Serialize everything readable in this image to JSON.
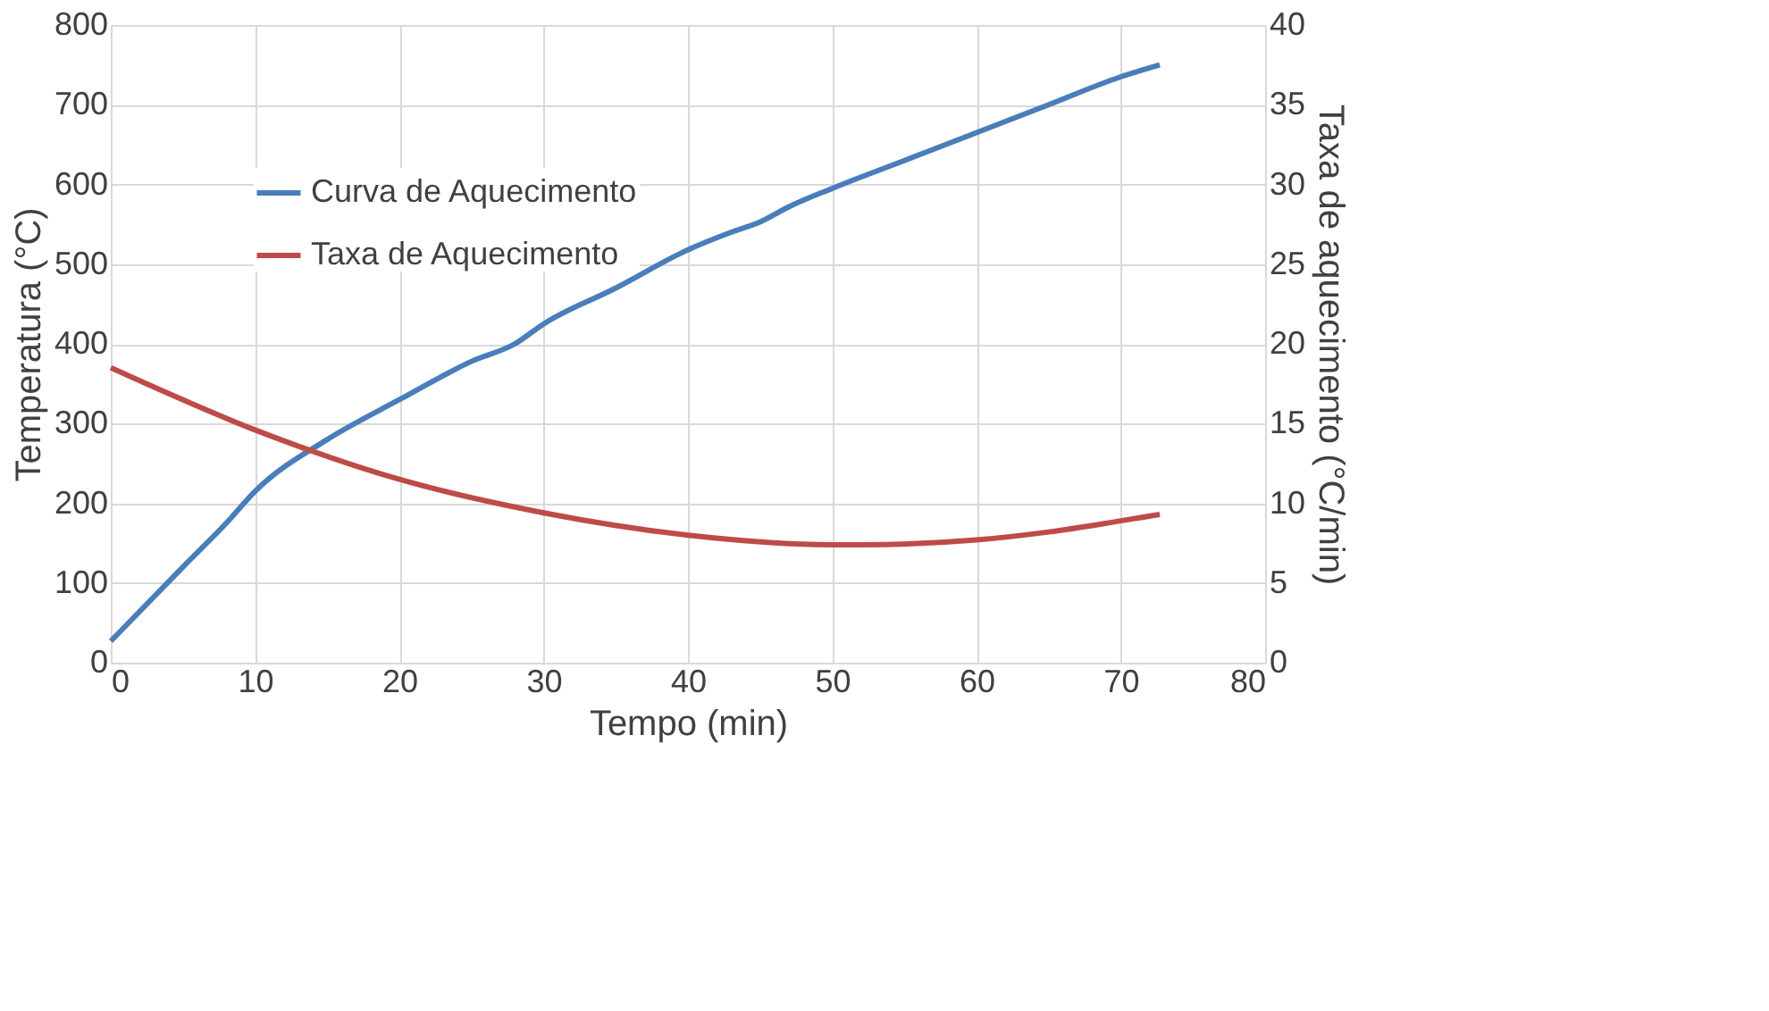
{
  "chart_data": {
    "type": "line",
    "xlabel": "Tempo (min)",
    "ylabel": "Temperatura (°C)",
    "y2label": "Taxa de aquecimento (°C/min)",
    "xlim": [
      0,
      80
    ],
    "xticks": [
      0,
      10,
      20,
      30,
      40,
      50,
      60,
      70,
      80
    ],
    "ylim": [
      0,
      800
    ],
    "yticks": [
      0,
      100,
      200,
      300,
      400,
      500,
      600,
      700,
      800
    ],
    "y2lim": [
      0,
      40
    ],
    "y2ticks": [
      0,
      5,
      10,
      15,
      20,
      25,
      30,
      35,
      40
    ],
    "grid": true,
    "legend": "top left",
    "line_style": "solid",
    "series": [
      {
        "name": "Curva de Aquecimento",
        "color": "#4a7ebb",
        "x": [
          0,
          5,
          8,
          10,
          15,
          20,
          25,
          28,
          30,
          35,
          40,
          43,
          45,
          47,
          50,
          55,
          60,
          65,
          70,
          72.7
        ],
        "values": [
          27,
          120,
          175,
          215,
          280,
          330,
          378,
          400,
          425,
          470,
          518,
          540,
          553,
          572,
          595,
          630,
          665,
          700,
          735,
          750
        ]
      },
      {
        "name": "Taxa de Aquecimento",
        "color": "#be4b48",
        "axis": "y2",
        "x": [
          0,
          10,
          20,
          30,
          40,
          50,
          52,
          60,
          65,
          70,
          72.7
        ],
        "values": [
          18.5,
          14.6,
          11.5,
          9.4,
          8.0,
          7.4,
          7.4,
          7.7,
          8.2,
          8.9,
          9.3
        ]
      }
    ]
  }
}
